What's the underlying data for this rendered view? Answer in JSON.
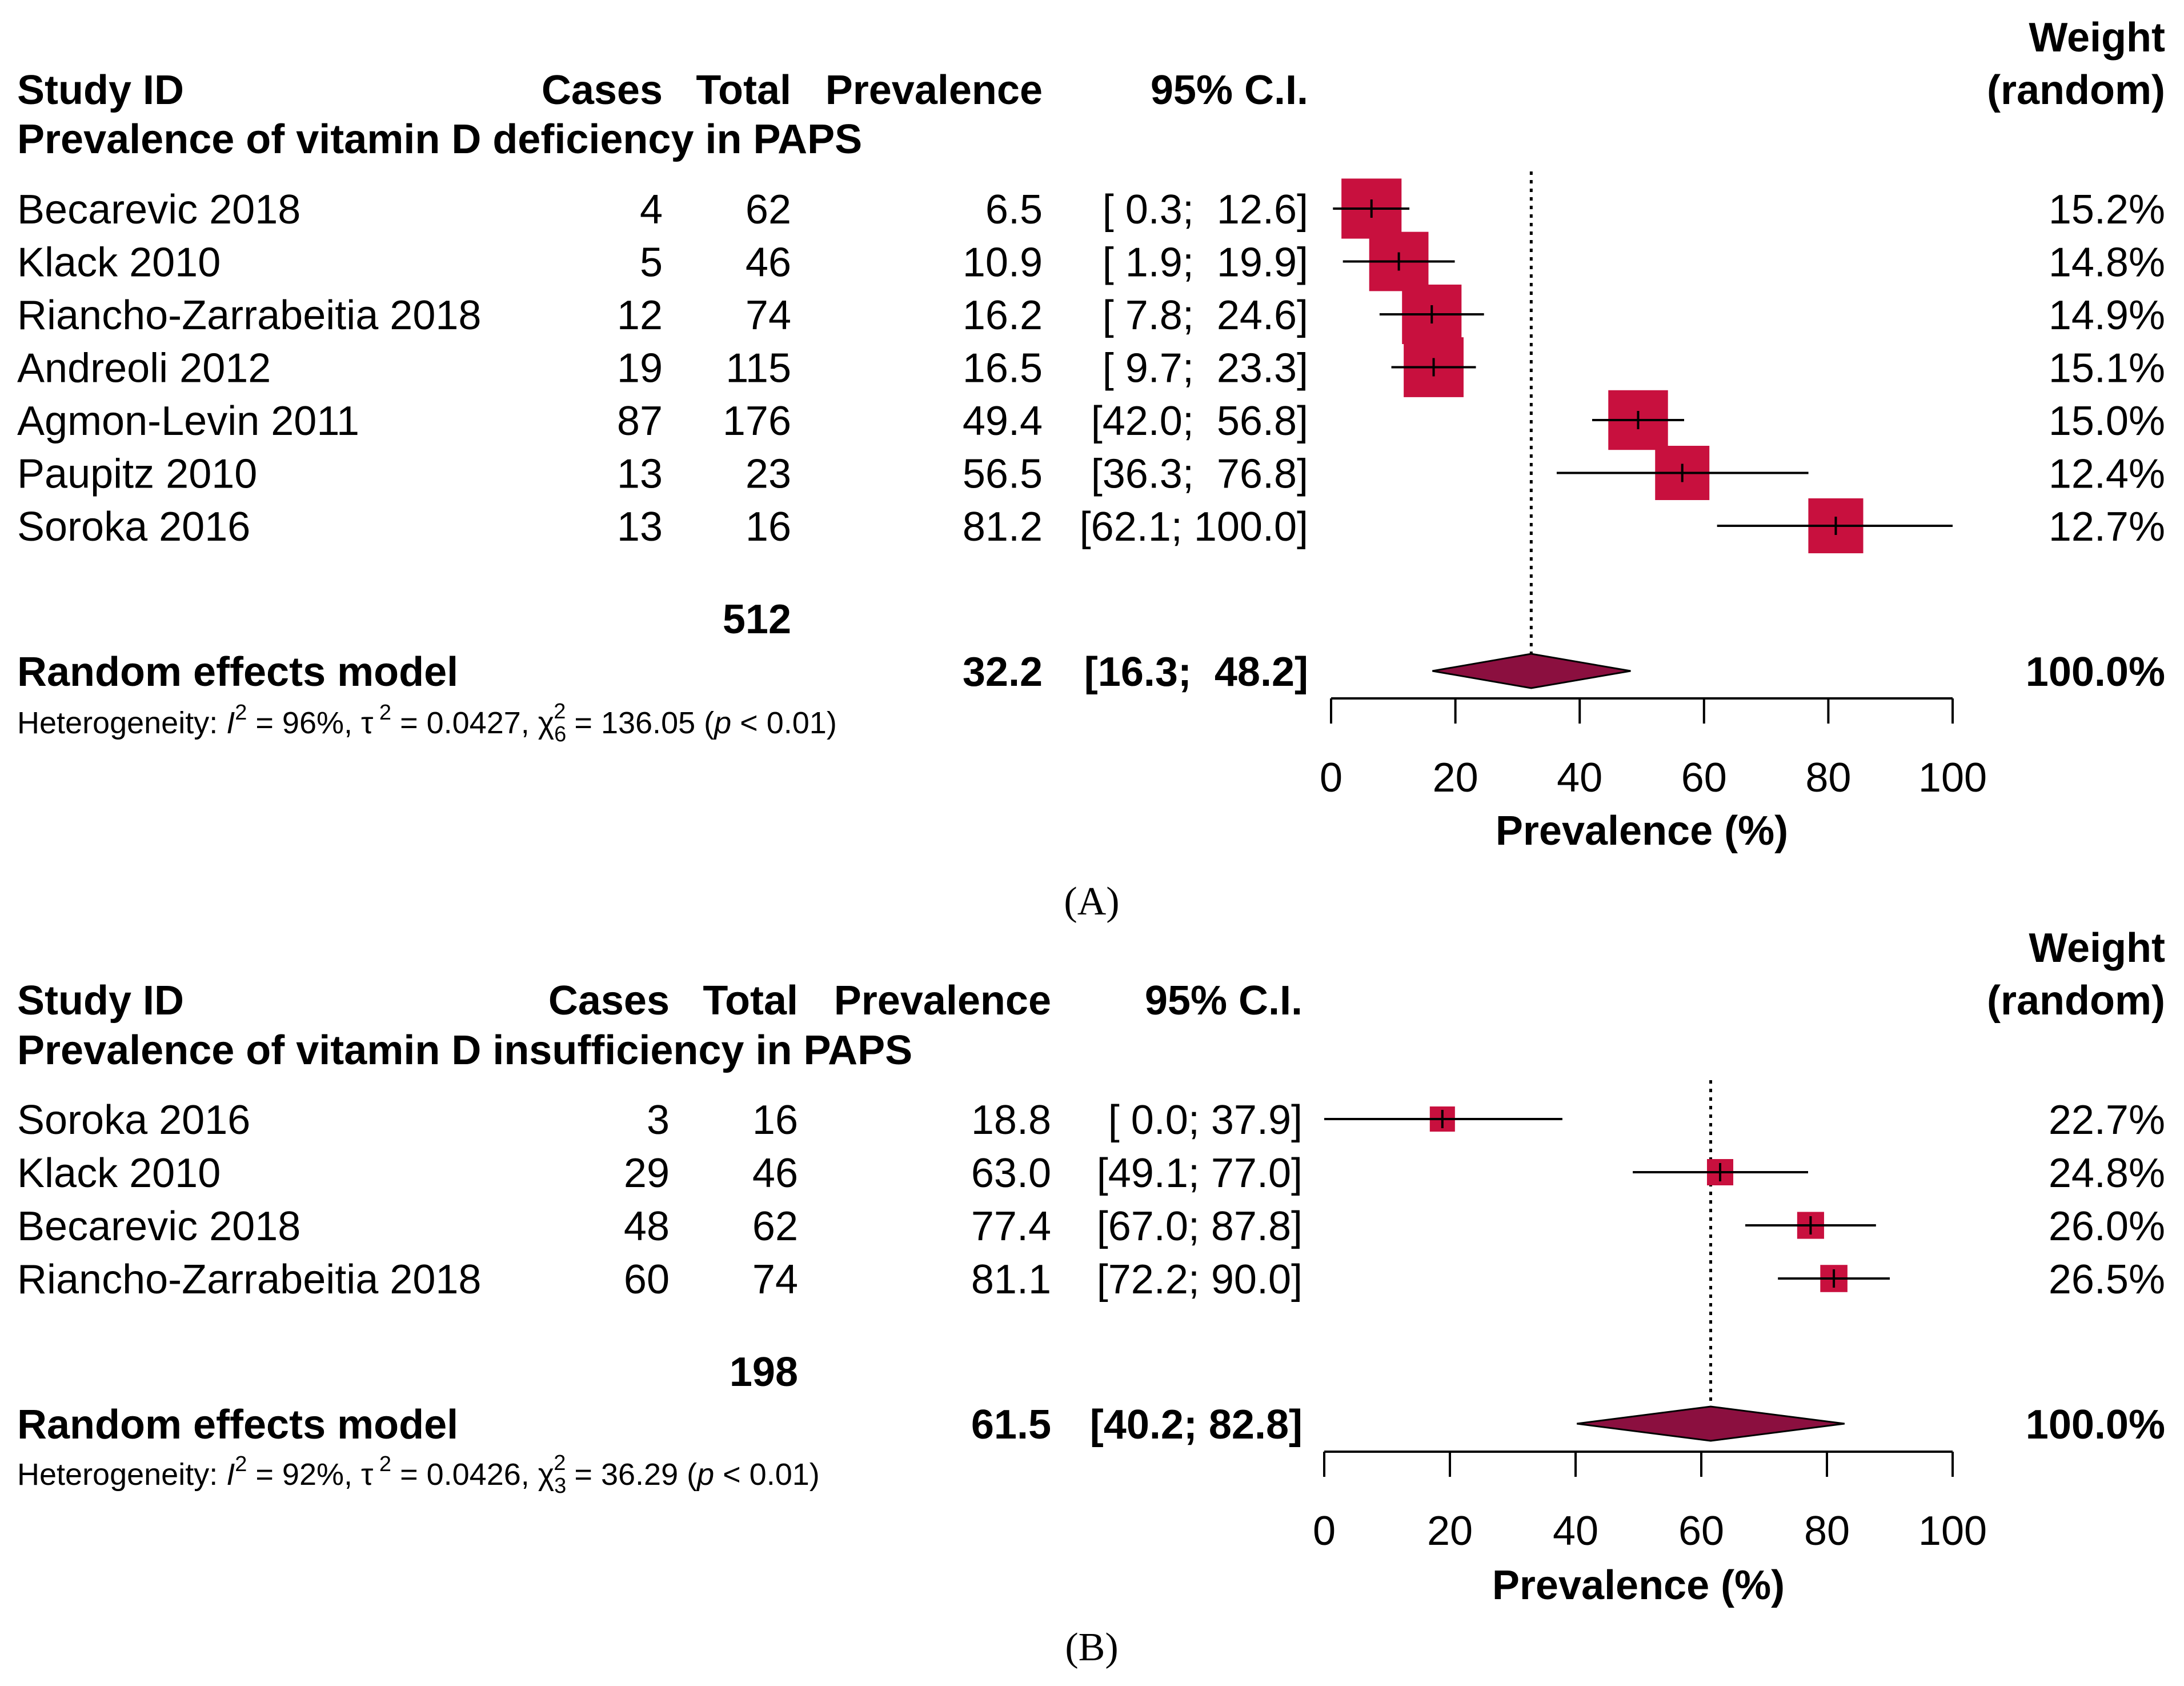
{
  "chart_data": [
    {
      "type": "forest",
      "panel": "(A)",
      "headers": {
        "study": "Study ID",
        "cases": "Cases",
        "total": "Total",
        "prevalence": "Prevalence",
        "ci": "95% C.I.",
        "weight_line1": "Weight",
        "weight_line2": "(random)"
      },
      "subgroup_title": "Prevalence of vitamin D deficiency in PAPS",
      "studies": [
        {
          "name": "Becarevic 2018",
          "cases": "4",
          "total": "62",
          "prev": 6.5,
          "lo": 0.3,
          "hi": 12.6,
          "prev_text": "6.5",
          "ci_text": "[ 0.3;  12.6]",
          "weight": 15.2,
          "weight_text": "15.2%"
        },
        {
          "name": "Klack 2010",
          "cases": "5",
          "total": "46",
          "prev": 10.9,
          "lo": 1.9,
          "hi": 19.9,
          "prev_text": "10.9",
          "ci_text": "[ 1.9;  19.9]",
          "weight": 14.8,
          "weight_text": "14.8%"
        },
        {
          "name": "Riancho-Zarrabeitia 2018",
          "cases": "12",
          "total": "74",
          "prev": 16.2,
          "lo": 7.8,
          "hi": 24.6,
          "prev_text": "16.2",
          "ci_text": "[ 7.8;  24.6]",
          "weight": 14.9,
          "weight_text": "14.9%"
        },
        {
          "name": "Andreoli 2012",
          "cases": "19",
          "total": "115",
          "prev": 16.5,
          "lo": 9.7,
          "hi": 23.3,
          "prev_text": "16.5",
          "ci_text": "[ 9.7;  23.3]",
          "weight": 15.1,
          "weight_text": "15.1%"
        },
        {
          "name": "Agmon-Levin 2011",
          "cases": "87",
          "total": "176",
          "prev": 49.4,
          "lo": 42.0,
          "hi": 56.8,
          "prev_text": "49.4",
          "ci_text": "[42.0;  56.8]",
          "weight": 15.0,
          "weight_text": "15.0%"
        },
        {
          "name": "Paupitz 2010",
          "cases": "13",
          "total": "23",
          "prev": 56.5,
          "lo": 36.3,
          "hi": 76.8,
          "prev_text": "56.5",
          "ci_text": "[36.3;  76.8]",
          "weight": 12.4,
          "weight_text": "12.4%"
        },
        {
          "name": "Soroka 2016",
          "cases": "13",
          "total": "16",
          "prev": 81.2,
          "lo": 62.1,
          "hi": 100.0,
          "prev_text": "81.2",
          "ci_text": "[62.1; 100.0]",
          "weight": 12.7,
          "weight_text": "12.7%"
        }
      ],
      "total_n": "512",
      "pooled": {
        "label": "Random effects model",
        "prev": 32.2,
        "lo": 16.3,
        "hi": 48.2,
        "prev_text": "32.2",
        "ci_text": "[16.3;  48.2]",
        "weight_text": "100.0%"
      },
      "heterogeneity": {
        "prefix": "Heterogeneity: ",
        "I": "I",
        "sq": "2",
        "i2_val": " = 96%, ",
        "tau": "τ",
        "tau_val": " = 0.0427, ",
        "chi": "χ",
        "df": "6",
        "chi_val": " = 136.05 (",
        "p": "p",
        "p_val": " < 0.01)"
      },
      "x_axis": {
        "label": "Prevalence (%)",
        "ticks": [
          0,
          20,
          40,
          60,
          80,
          100
        ],
        "tick_labels": [
          "0",
          "20",
          "40",
          "60",
          "80",
          "100"
        ],
        "xlim": [
          0,
          100
        ]
      }
    },
    {
      "type": "forest",
      "panel": "(B)",
      "headers": {
        "study": "Study ID",
        "cases": "Cases",
        "total": "Total",
        "prevalence": "Prevalence",
        "ci": "95% C.I.",
        "weight_line1": "Weight",
        "weight_line2": "(random)"
      },
      "subgroup_title": "Prevalence of vitamin D insufficiency in PAPS",
      "studies": [
        {
          "name": "Soroka 2016",
          "cases": "3",
          "total": "16",
          "prev": 18.8,
          "lo": 0.0,
          "hi": 37.9,
          "prev_text": "18.8",
          "ci_text": "[ 0.0; 37.9]",
          "weight": 22.7,
          "weight_text": "22.7%"
        },
        {
          "name": "Klack 2010",
          "cases": "29",
          "total": "46",
          "prev": 63.0,
          "lo": 49.1,
          "hi": 77.0,
          "prev_text": "63.0",
          "ci_text": "[49.1; 77.0]",
          "weight": 24.8,
          "weight_text": "24.8%"
        },
        {
          "name": "Becarevic 2018",
          "cases": "48",
          "total": "62",
          "prev": 77.4,
          "lo": 67.0,
          "hi": 87.8,
          "prev_text": "77.4",
          "ci_text": "[67.0; 87.8]",
          "weight": 26.0,
          "weight_text": "26.0%"
        },
        {
          "name": "Riancho-Zarrabeitia 2018",
          "cases": "60",
          "total": "74",
          "prev": 81.1,
          "lo": 72.2,
          "hi": 90.0,
          "prev_text": "81.1",
          "ci_text": "[72.2; 90.0]",
          "weight": 26.5,
          "weight_text": "26.5%"
        }
      ],
      "total_n": "198",
      "pooled": {
        "label": "Random effects model",
        "prev": 61.5,
        "lo": 40.2,
        "hi": 82.8,
        "prev_text": "61.5",
        "ci_text": "[40.2; 82.8]",
        "weight_text": "100.0%"
      },
      "heterogeneity": {
        "prefix": "Heterogeneity: ",
        "I": "I",
        "sq": "2",
        "i2_val": " = 92%, ",
        "tau": "τ",
        "tau_val": " = 0.0426, ",
        "chi": "χ",
        "df": "3",
        "chi_val": " = 36.29 (",
        "p": "p",
        "p_val": " < 0.01)"
      },
      "x_axis": {
        "label": "Prevalence (%)",
        "ticks": [
          0,
          20,
          40,
          60,
          80,
          100
        ],
        "tick_labels": [
          "0",
          "20",
          "40",
          "60",
          "80",
          "100"
        ],
        "xlim": [
          0,
          100
        ]
      }
    }
  ],
  "colors": {
    "square": "#c8103e",
    "diamond": "#8b0f3f",
    "line": "#000000"
  }
}
